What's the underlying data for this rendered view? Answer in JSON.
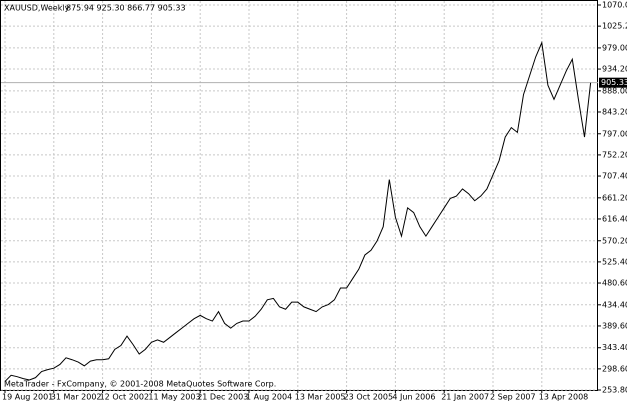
{
  "chart_data": {
    "type": "line",
    "title": "XAUUSD,Weekly",
    "ohlc_text": "875.94 925.30 866.77 905.33",
    "annotation": "MetaTrader - FxCompany, © 2001-2008 MetaQuotes Software Corp.",
    "color": "#000000",
    "grid": true,
    "current_price": 905.33,
    "categories": [
      "19 Aug 2001",
      null,
      null,
      null,
      null,
      null,
      null,
      null,
      "31 Mar 2002",
      null,
      null,
      null,
      null,
      null,
      null,
      null,
      "12 Oct 2002",
      null,
      null,
      null,
      null,
      null,
      null,
      null,
      "11 May 2003",
      null,
      null,
      null,
      null,
      null,
      null,
      null,
      "21 Dec 2003",
      null,
      null,
      null,
      null,
      null,
      null,
      null,
      "1 Aug 2004",
      null,
      null,
      null,
      null,
      null,
      null,
      null,
      "13 Mar 2005",
      null,
      null,
      null,
      null,
      null,
      null,
      null,
      "23 Oct 2005",
      null,
      null,
      null,
      null,
      null,
      null,
      null,
      "4 Jun 2006",
      null,
      null,
      null,
      null,
      null,
      null,
      null,
      "21 Jan 2007",
      null,
      null,
      null,
      null,
      null,
      null,
      null,
      "2 Sep 2007",
      null,
      null,
      null,
      null,
      null,
      null,
      null,
      "13 Apr 2008",
      null,
      null,
      null,
      null,
      null,
      null,
      null,
      null
    ],
    "values": [
      272,
      285,
      282,
      278,
      275,
      280,
      293,
      297,
      300,
      308,
      322,
      318,
      313,
      305,
      315,
      318,
      318,
      320,
      340,
      348,
      368,
      350,
      330,
      340,
      355,
      360,
      355,
      365,
      375,
      385,
      395,
      405,
      412,
      405,
      400,
      420,
      395,
      385,
      395,
      400,
      400,
      410,
      425,
      445,
      448,
      430,
      425,
      440,
      440,
      430,
      425,
      420,
      430,
      435,
      445,
      470,
      470,
      490,
      510,
      540,
      550,
      570,
      600,
      700,
      620,
      580,
      640,
      630,
      600,
      580,
      600,
      620,
      640,
      660,
      665,
      680,
      670,
      655,
      665,
      680,
      710,
      740,
      790,
      810,
      800,
      880,
      920,
      960,
      990,
      900,
      870,
      900,
      930,
      955,
      870,
      790,
      905
    ],
    "ylim": [
      253.8,
      1070
    ],
    "yticks": [
      {
        "value": 1070,
        "label": "1070.00"
      },
      {
        "value": 1025.2,
        "label": "1025.20"
      },
      {
        "value": 979,
        "label": "979.00"
      },
      {
        "value": 934.2,
        "label": "934.20"
      },
      {
        "value": 888,
        "label": "888.00"
      },
      {
        "value": 843.2,
        "label": "843.20"
      },
      {
        "value": 797,
        "label": "797.00"
      },
      {
        "value": 752.2,
        "label": "752.20"
      },
      {
        "value": 707.4,
        "label": "707.40"
      },
      {
        "value": 661.2,
        "label": "661.20"
      },
      {
        "value": 616.4,
        "label": "616.40"
      },
      {
        "value": 570.2,
        "label": "570.20"
      },
      {
        "value": 525.4,
        "label": "525.40"
      },
      {
        "value": 480.6,
        "label": "480.60"
      },
      {
        "value": 434.4,
        "label": "434.40"
      },
      {
        "value": 389.6,
        "label": "389.60"
      },
      {
        "value": 343.4,
        "label": "343.40"
      },
      {
        "value": 298.6,
        "label": "298.60"
      },
      {
        "value": 253.8,
        "label": "253.80"
      }
    ]
  }
}
